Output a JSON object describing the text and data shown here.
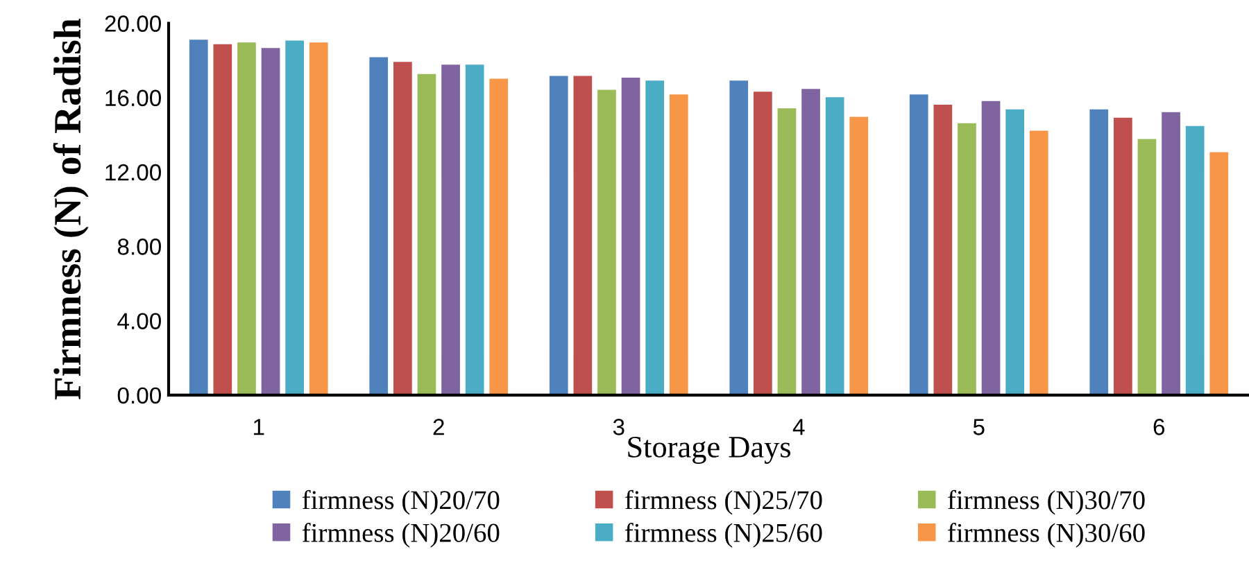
{
  "chart_data": {
    "type": "bar",
    "xlabel": "Storage Days",
    "ylabel": "Firmness (N) of Radish",
    "categories": [
      "1",
      "2",
      "3",
      "4",
      "5",
      "6"
    ],
    "series": [
      {
        "name": "firmness (N)20/70",
        "color": "#4f81bd",
        "values": [
          19.15,
          18.2,
          17.2,
          16.95,
          16.2,
          15.4
        ]
      },
      {
        "name": "firmness (N)25/70",
        "color": "#c0504d",
        "values": [
          18.9,
          17.95,
          17.2,
          16.35,
          15.65,
          14.95
        ]
      },
      {
        "name": "firmness (N)30/70",
        "color": "#9bbb59",
        "values": [
          19.0,
          17.3,
          16.45,
          15.45,
          14.65,
          13.8
        ]
      },
      {
        "name": "firmness (N)20/60",
        "color": "#8064a2",
        "values": [
          18.7,
          17.8,
          17.1,
          16.5,
          15.85,
          15.25
        ]
      },
      {
        "name": "firmness (N)25/60",
        "color": "#4bacc6",
        "values": [
          19.1,
          17.8,
          16.95,
          16.05,
          15.4,
          14.5
        ]
      },
      {
        "name": "firmness (N)30/60",
        "color": "#f79646",
        "values": [
          19.0,
          17.05,
          16.2,
          15.0,
          14.25,
          13.1
        ]
      }
    ],
    "ylim": [
      0,
      20
    ],
    "yticks": [
      {
        "value": 0,
        "label": "0.00"
      },
      {
        "value": 4,
        "label": "4.00"
      },
      {
        "value": 8,
        "label": "8.00"
      },
      {
        "value": 12,
        "label": "12.00"
      },
      {
        "value": 16,
        "label": "16.00"
      },
      {
        "value": 20,
        "label": "20.00"
      }
    ],
    "grid": false,
    "legend": "bottom"
  }
}
